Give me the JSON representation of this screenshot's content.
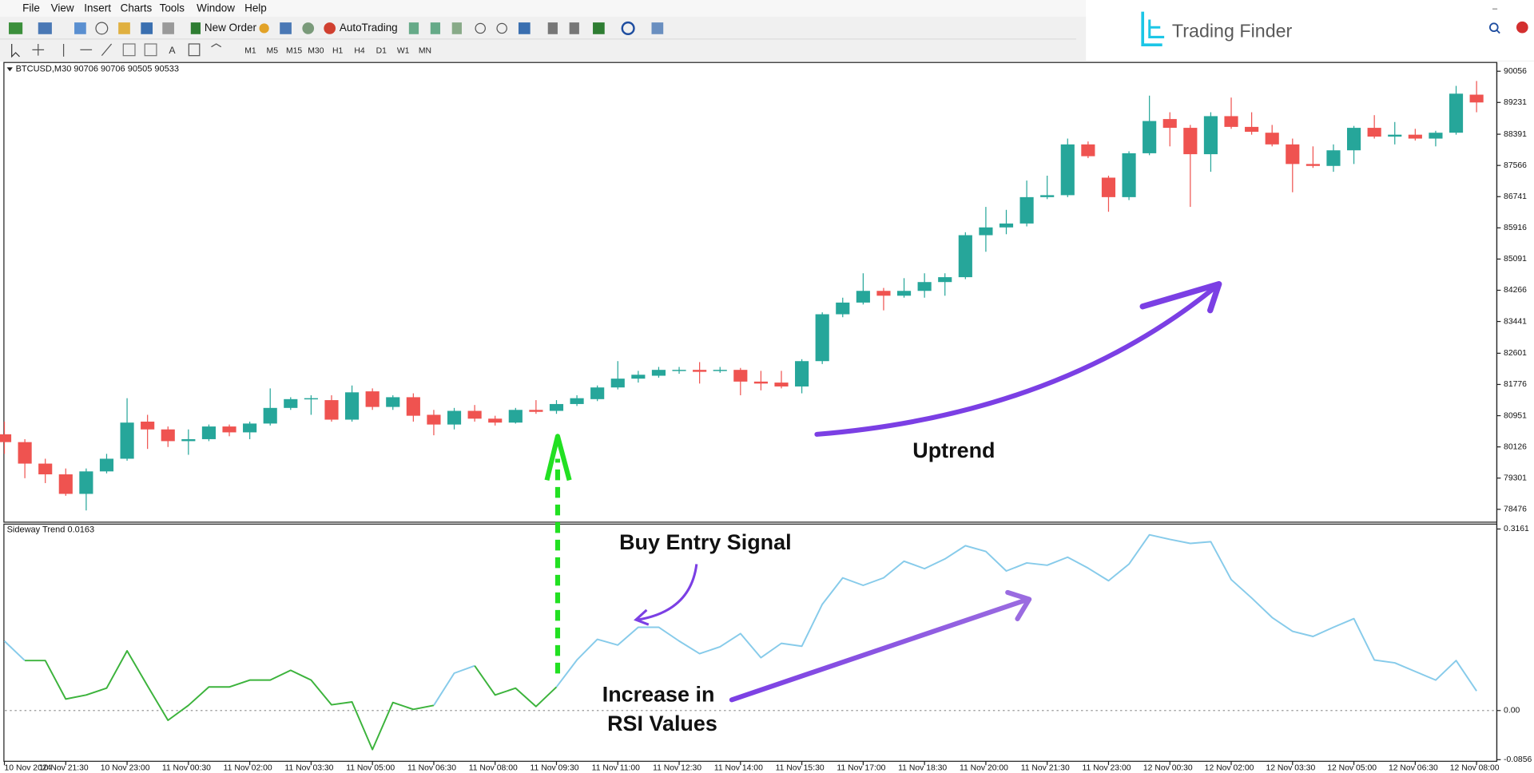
{
  "menu": [
    "File",
    "View",
    "Insert",
    "Charts",
    "Tools",
    "Window",
    "Help"
  ],
  "toolbar": {
    "new_order": "New Order",
    "auto_trading": "AutoTrading",
    "timeframes": [
      "M1",
      "M5",
      "M15",
      "M30",
      "H1",
      "H4",
      "D1",
      "W1",
      "MN"
    ]
  },
  "logo": "Trading Finder",
  "chart_header": "BTCUSD,M30  90706 90706 90505 90533",
  "annotations": {
    "uptrend": "Uptrend",
    "buy_signal": "Buy Entry Signal",
    "rsi_line1": "Increase in",
    "rsi_line2": "RSI Values"
  },
  "chart_data": [
    {
      "type": "candlestick",
      "categories": [
        "10 Nov 2024",
        null,
        null,
        "10 Nov 21:30",
        null,
        null,
        "10 Nov 23:00",
        null,
        null,
        "11 Nov 00:30",
        null,
        null,
        "11 Nov 02:00",
        null,
        null,
        "11 Nov 03:30",
        null,
        null,
        "11 Nov 05:00",
        null,
        null,
        "11 Nov 06:30",
        null,
        null,
        "11 Nov 08:00",
        null,
        null,
        "11 Nov 09:30",
        null,
        null,
        "11 Nov 11:00",
        null,
        null,
        "11 Nov 12:30",
        null,
        null,
        "11 Nov 14:00",
        null,
        null,
        "11 Nov 15:30",
        null,
        null,
        "11 Nov 17:00",
        null,
        null,
        "11 Nov 18:30",
        null,
        null,
        "11 Nov 20:00",
        null,
        null,
        "11 Nov 21:30",
        null,
        null,
        "11 Nov 23:00",
        null,
        null,
        "12 Nov 00:30",
        null,
        null,
        "12 Nov 02:00",
        null,
        null,
        "12 Nov 03:30",
        null,
        null,
        "12 Nov 05:00",
        null,
        null,
        "12 Nov 06:30",
        null,
        null,
        "12 Nov 08:00"
      ],
      "open": [
        80459,
        80252,
        79684,
        79400,
        78884,
        79478,
        79813,
        80794,
        80588,
        80278,
        80330,
        80665,
        80510,
        80743,
        81156,
        81388,
        81362,
        80846,
        81594,
        81182,
        81439,
        80974,
        80717,
        81078,
        80872,
        80768,
        81104,
        81078,
        81259,
        81388,
        81697,
        81930,
        82007,
        82136,
        82162,
        82136,
        82162,
        81852,
        81826,
        81723,
        82393,
        83632,
        83941,
        84250,
        84122,
        84250,
        84483,
        84612,
        85722,
        85928,
        86031,
        86728,
        86780,
        88122,
        87243,
        86728,
        87888,
        88792,
        88560,
        87863,
        88869,
        88585,
        88431,
        88122,
        87604,
        87553,
        87966,
        88560,
        88328,
        88379,
        88276,
        88431,
        89437
      ],
      "high": [
        80794,
        80330,
        79813,
        79555,
        79555,
        79942,
        81413,
        80974,
        80665,
        80588,
        80717,
        80717,
        80794,
        81672,
        81439,
        81491,
        81491,
        81749,
        81672,
        81491,
        81542,
        81104,
        81156,
        81233,
        80949,
        81156,
        81362,
        81362,
        81491,
        81749,
        82393,
        82136,
        82239,
        82239,
        82367,
        82239,
        82213,
        82136,
        82136,
        82444,
        83683,
        84070,
        84715,
        84328,
        84586,
        84715,
        84715,
        85800,
        86470,
        86392,
        87166,
        87295,
        88276,
        88199,
        87295,
        87940,
        89411,
        88972,
        88637,
        88972,
        89360,
        88972,
        88637,
        88276,
        88070,
        88122,
        88611,
        88895,
        88714,
        88534,
        88482,
        89669,
        89798
      ],
      "low": [
        79942,
        79298,
        79169,
        78833,
        78446,
        79426,
        79761,
        80072,
        80123,
        79917,
        80278,
        80407,
        80330,
        80691,
        81104,
        80974,
        80794,
        80794,
        81104,
        81104,
        80794,
        80433,
        80588,
        80794,
        80691,
        80743,
        81000,
        81000,
        81207,
        81336,
        81645,
        81826,
        81955,
        82058,
        81800,
        82084,
        81491,
        81620,
        81672,
        81542,
        82316,
        83554,
        83890,
        83735,
        84070,
        84070,
        84122,
        84560,
        85284,
        85748,
        85954,
        86676,
        86728,
        87759,
        86341,
        86650,
        87837,
        88070,
        86470,
        87398,
        88534,
        88379,
        88070,
        86857,
        87501,
        87398,
        87604,
        88276,
        88122,
        88225,
        88070,
        88379,
        88972
      ],
      "close": [
        80252,
        79684,
        79400,
        78884,
        79478,
        79813,
        80768,
        80588,
        80278,
        80330,
        80665,
        80510,
        80743,
        81156,
        81388,
        81413,
        80846,
        81568,
        81182,
        81439,
        80949,
        80717,
        81078,
        80872,
        80768,
        81104,
        81052,
        81259,
        81413,
        81697,
        81930,
        82033,
        82162,
        82162,
        82110,
        82162,
        81852,
        81800,
        81723,
        82393,
        83632,
        83941,
        84250,
        84122,
        84250,
        84483,
        84612,
        85722,
        85928,
        86031,
        86728,
        86780,
        88122,
        87810,
        86728,
        87888,
        88740,
        88560,
        87863,
        88869,
        88585,
        88456,
        88122,
        87604,
        87553,
        87966,
        88560,
        88328,
        88379,
        88276,
        88431,
        89463,
        89231
      ],
      "up_color": "#26a69a",
      "down_color": "#ef5350",
      "ylim": [
        78136,
        90288
      ],
      "yticks": [
        90056,
        89231,
        88391,
        87566,
        86741,
        85916,
        85091,
        84266,
        83441,
        82601,
        81776,
        80951,
        80126,
        79301,
        78476
      ]
    },
    {
      "type": "line",
      "title": "Sideway Trend 0.0163",
      "series": [
        {
          "values": [
            0.121,
            0.087,
            0.087,
            0.02,
            0.027,
            0.039,
            0.104,
            0.043,
            -0.017,
            0.009,
            0.041,
            0.041,
            0.053,
            0.053,
            0.07,
            0.053,
            0.01,
            0.015,
            -0.068,
            0.014,
            0.002,
            0.009,
            0.065,
            0.078,
            0.027,
            0.039,
            0.007,
            0.041,
            0.088,
            0.124,
            0.114,
            0.145,
            0.145,
            0.121,
            0.099,
            0.111,
            0.134,
            0.092,
            0.117,
            0.112,
            0.185,
            0.231,
            0.218,
            0.231,
            0.26,
            0.247,
            0.264,
            0.287,
            0.277,
            0.243,
            0.257,
            0.253,
            0.267,
            0.248,
            0.226,
            0.255,
            0.306,
            0.298,
            0.291,
            0.294,
            0.228,
            0.196,
            0.162,
            0.138,
            0.129,
            0.145,
            0.16,
            0.088,
            0.083,
            0.068,
            0.053,
            0.087,
            0.034
          ],
          "colors": [
            "#87cbea",
            "#87cbea",
            "#3cb33c",
            "#3cb33c",
            "#3cb33c",
            "#3cb33c",
            "#3cb33c",
            "#3cb33c",
            "#3cb33c",
            "#3cb33c",
            "#3cb33c",
            "#3cb33c",
            "#3cb33c",
            "#3cb33c",
            "#3cb33c",
            "#3cb33c",
            "#3cb33c",
            "#3cb33c",
            "#3cb33c",
            "#3cb33c",
            "#3cb33c",
            "#3cb33c",
            "#87cbea",
            "#87cbea",
            "#3cb33c",
            "#3cb33c",
            "#3cb33c",
            "#3cb33c",
            "#87cbea",
            "#87cbea",
            "#87cbea",
            "#87cbea",
            "#87cbea",
            "#87cbea",
            "#87cbea",
            "#87cbea",
            "#87cbea",
            "#87cbea",
            "#87cbea",
            "#87cbea",
            "#87cbea",
            "#87cbea",
            "#87cbea",
            "#87cbea",
            "#87cbea",
            "#87cbea",
            "#87cbea",
            "#87cbea",
            "#87cbea",
            "#87cbea",
            "#87cbea",
            "#87cbea",
            "#87cbea",
            "#87cbea",
            "#87cbea",
            "#87cbea",
            "#87cbea",
            "#87cbea",
            "#87cbea",
            "#87cbea",
            "#87cbea",
            "#87cbea",
            "#87cbea",
            "#87cbea",
            "#87cbea",
            "#87cbea",
            "#87cbea",
            "#87cbea",
            "#87cbea",
            "#87cbea",
            "#87cbea",
            "#87cbea",
            "#87cbea"
          ]
        }
      ],
      "ylim": [
        -0.0884,
        0.3246
      ],
      "yticks": [
        0.3161,
        {
          "value": 0,
          "label": "0.00"
        },
        -0.0856
      ],
      "levels": [
        0
      ]
    }
  ]
}
